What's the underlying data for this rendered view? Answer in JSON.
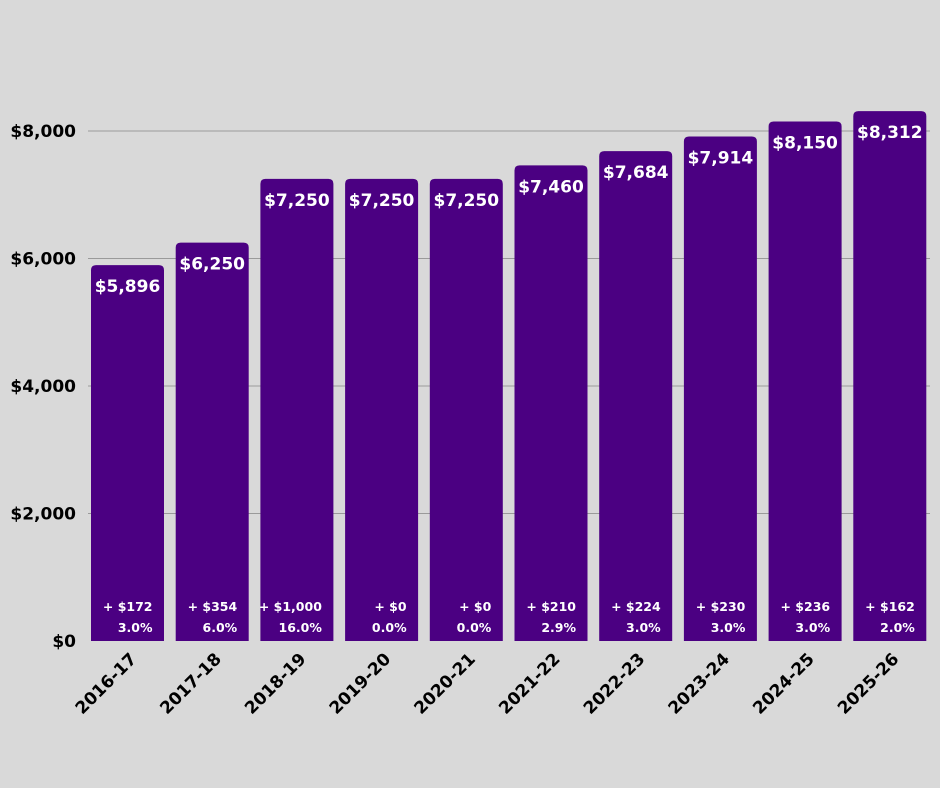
{
  "chart_data": {
    "type": "bar",
    "title": "",
    "xlabel": "",
    "ylabel": "",
    "ylim": [
      0,
      8000
    ],
    "yticks": [
      0,
      2000,
      4000,
      6000,
      8000
    ],
    "ytick_labels": [
      "$0",
      "$2,000",
      "$4,000",
      "$6,000",
      "$8,000"
    ],
    "grid": true,
    "bar_color": "#4b0082",
    "background": "#d9d9d9",
    "categories": [
      "2016-17",
      "2017-18",
      "2018-19",
      "2019-20",
      "2020-21",
      "2021-22",
      "2022-23",
      "2023-24",
      "2024-25",
      "2025-26"
    ],
    "values": [
      5896,
      6250,
      7250,
      7250,
      7250,
      7460,
      7684,
      7914,
      8150,
      8312
    ],
    "value_labels": [
      "$5,896",
      "$6,250",
      "$7,250",
      "$7,250",
      "$7,250",
      "$7,460",
      "$7,684",
      "$7,914",
      "$8,150",
      "$8,312"
    ],
    "change_labels": [
      "+ $172",
      "+ $354",
      "+ $1,000",
      "+ $0",
      "+ $0",
      "+ $210",
      "+ $224",
      "+ $230",
      "+ $236",
      "+ $162"
    ],
    "percent_labels": [
      "3.0%",
      "6.0%",
      "16.0%",
      "0.0%",
      "0.0%",
      "2.9%",
      "3.0%",
      "3.0%",
      "3.0%",
      "2.0%"
    ]
  }
}
